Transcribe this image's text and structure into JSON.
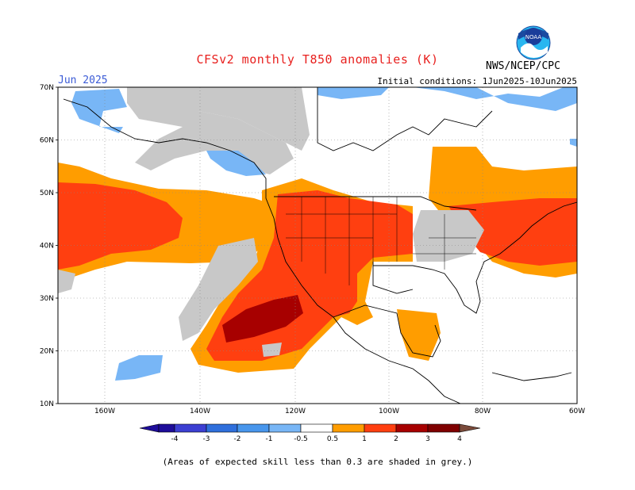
{
  "header": {
    "title": "CFSv2 monthly T850 anomalies (K)",
    "month": "Jun 2025",
    "initial_conditions": "Initial conditions: 1Jun2025-10Jun2025",
    "agency": "NWS/NCEP/CPC",
    "logo_text": "NOAA"
  },
  "axes": {
    "lat_labels": [
      "70N",
      "60N",
      "50N",
      "40N",
      "30N",
      "20N",
      "10N"
    ],
    "lon_labels": [
      "160W",
      "140W",
      "120W",
      "100W",
      "80W",
      "60W"
    ]
  },
  "legend": {
    "tick_labels": [
      "-4",
      "-3",
      "-2",
      "-1",
      "-0.5",
      "0.5",
      "1",
      "2",
      "3",
      "4"
    ],
    "colors": [
      "#1e0d9a",
      "#3c3fd2",
      "#2f6fdc",
      "#4896ec",
      "#78b6f6",
      "#ffffff",
      "#ff9d00",
      "#ff3f10",
      "#a70000",
      "#7f0000",
      "#c69a8a",
      "#7a4a3a"
    ]
  },
  "note": "(Areas of expected skill less than 0.3 are shaded in grey.)"
}
